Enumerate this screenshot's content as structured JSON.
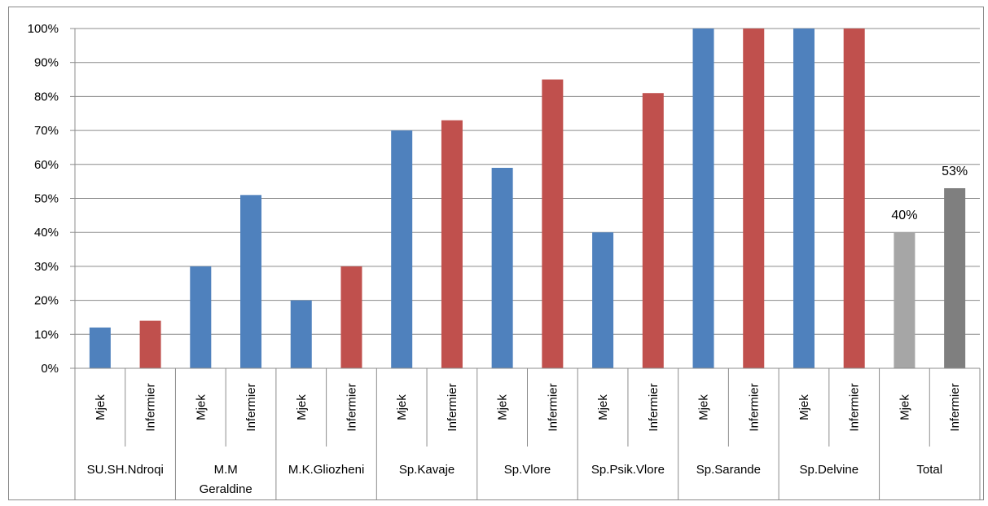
{
  "chart_data": {
    "type": "bar",
    "title": "",
    "xlabel": "",
    "ylabel": "",
    "ylim": [
      0,
      100
    ],
    "y_ticks": [
      "0%",
      "10%",
      "20%",
      "30%",
      "40%",
      "50%",
      "60%",
      "70%",
      "80%",
      "90%",
      "100%"
    ],
    "y_tick_values": [
      0,
      10,
      20,
      30,
      40,
      50,
      60,
      70,
      80,
      90,
      100
    ],
    "grid": "horizontal",
    "legend": "none",
    "groups": [
      {
        "label": "SU.SH.Ndroqi",
        "bars": [
          {
            "category": "Mjek",
            "value": 12,
            "color": "#4F81BD"
          },
          {
            "category": "Infermier",
            "value": 14,
            "color": "#C0504D"
          }
        ]
      },
      {
        "label": "M.M\nGeraldine",
        "bars": [
          {
            "category": "Mjek",
            "value": 30,
            "color": "#4F81BD"
          },
          {
            "category": "Infermier",
            "value": 51,
            "color": "#4F81BD"
          }
        ]
      },
      {
        "label": "M.K.Gliozheni",
        "bars": [
          {
            "category": "Mjek",
            "value": 20,
            "color": "#4F81BD"
          },
          {
            "category": "Infermier",
            "value": 30,
            "color": "#C0504D"
          }
        ]
      },
      {
        "label": "Sp.Kavaje",
        "bars": [
          {
            "category": "Mjek",
            "value": 70,
            "color": "#4F81BD"
          },
          {
            "category": "Infermier",
            "value": 73,
            "color": "#C0504D"
          }
        ]
      },
      {
        "label": "Sp.Vlore",
        "bars": [
          {
            "category": "Mjek",
            "value": 59,
            "color": "#4F81BD"
          },
          {
            "category": "Infermier",
            "value": 85,
            "color": "#C0504D"
          }
        ]
      },
      {
        "label": "Sp.Psik.Vlore",
        "bars": [
          {
            "category": "Mjek",
            "value": 40,
            "color": "#4F81BD"
          },
          {
            "category": "Infermier",
            "value": 81,
            "color": "#C0504D"
          }
        ]
      },
      {
        "label": "Sp.Sarande",
        "bars": [
          {
            "category": "Mjek",
            "value": 100,
            "color": "#4F81BD"
          },
          {
            "category": "Infermier",
            "value": 100,
            "color": "#C0504D"
          }
        ]
      },
      {
        "label": "Sp.Delvine",
        "bars": [
          {
            "category": "Mjek",
            "value": 100,
            "color": "#4F81BD"
          },
          {
            "category": "Infermier",
            "value": 100,
            "color": "#C0504D"
          }
        ]
      },
      {
        "label": "Total",
        "bars": [
          {
            "category": "Mjek",
            "value": 40,
            "color": "#A6A6A6",
            "data_label": "40%"
          },
          {
            "category": "Infermier",
            "value": 53,
            "color": "#7F7F7F",
            "data_label": "53%"
          }
        ]
      }
    ]
  }
}
